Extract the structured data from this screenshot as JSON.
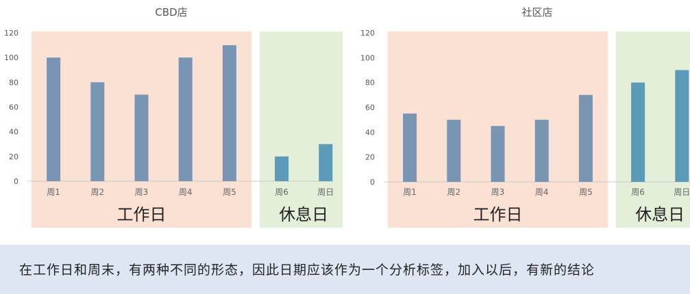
{
  "chart_data": [
    {
      "type": "bar",
      "title": "CBD店",
      "categories": [
        "周1",
        "周2",
        "周3",
        "周4",
        "周5",
        "周6",
        "周日"
      ],
      "values": [
        100,
        80,
        70,
        100,
        110,
        20,
        30
      ],
      "ylim": [
        0,
        120
      ],
      "yticks": [
        0,
        20,
        40,
        60,
        80,
        100,
        120
      ],
      "grid": false,
      "regions": [
        {
          "label": "工作日",
          "from": 0,
          "to": 4,
          "color": "#fbe0d4"
        },
        {
          "label": "休息日",
          "from": 5,
          "to": 6,
          "color": "#e3efd9"
        }
      ],
      "colors": {
        "weekday_bar": "#7895b4",
        "weekend_bar": "#5b9bb8"
      }
    },
    {
      "type": "bar",
      "title": "社区店",
      "categories": [
        "周1",
        "周2",
        "周3",
        "周4",
        "周5",
        "周6",
        "周日"
      ],
      "values": [
        55,
        50,
        45,
        50,
        70,
        80,
        90
      ],
      "ylim": [
        0,
        120
      ],
      "yticks": [
        0,
        20,
        40,
        60,
        80,
        100,
        120
      ],
      "grid": false,
      "regions": [
        {
          "label": "工作日",
          "from": 0,
          "to": 4,
          "color": "#fbe0d4"
        },
        {
          "label": "休息日",
          "from": 5,
          "to": 6,
          "color": "#e3efd9"
        }
      ],
      "colors": {
        "weekday_bar": "#7895b4",
        "weekend_bar": "#5b9bb8"
      }
    }
  ],
  "caption": "在工作日和周末，有两种不同的形态，因此日期应该作为一个分析标签，加入以后，有新的结论"
}
